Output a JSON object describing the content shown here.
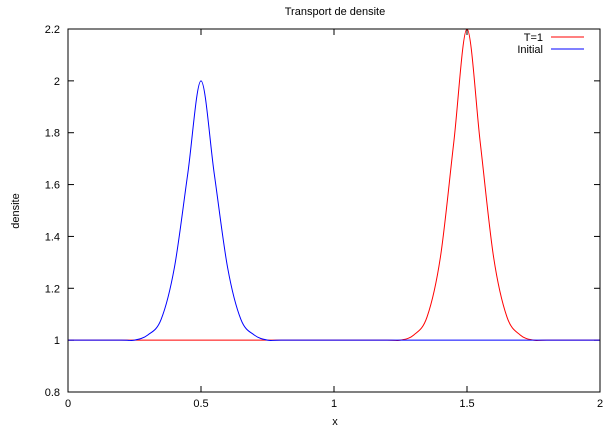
{
  "chart_data": {
    "type": "line",
    "title": "Transport de densite",
    "xlabel": "x",
    "ylabel": "densite",
    "xlim": [
      0,
      2
    ],
    "ylim": [
      0.8,
      2.2
    ],
    "grid": false,
    "legend_placement": "top-right",
    "x_ticks": [
      "0",
      "0.5",
      "1",
      "1.5",
      "2"
    ],
    "y_ticks": [
      "0.8",
      "1",
      "1.2",
      "1.4",
      "1.6",
      "1.8",
      "2",
      "2.2"
    ],
    "series": [
      {
        "name": "T=1",
        "color": "#ff0000",
        "x": [
          0,
          0.2,
          0.4,
          0.6,
          0.8,
          1.0,
          1.2,
          1.25,
          1.3,
          1.35,
          1.4,
          1.45,
          1.5,
          1.55,
          1.6,
          1.65,
          1.7,
          1.75,
          1.8,
          2.0
        ],
        "y": [
          1.0,
          1.0,
          1.0,
          1.0,
          1.0,
          1.0,
          1.0,
          1.0,
          1.02,
          1.09,
          1.32,
          1.76,
          2.2,
          1.76,
          1.32,
          1.09,
          1.02,
          1.0,
          1.0,
          1.0
        ]
      },
      {
        "name": "Initial",
        "color": "#0000ff",
        "x": [
          0,
          0.2,
          0.25,
          0.3,
          0.35,
          0.4,
          0.45,
          0.5,
          0.55,
          0.6,
          0.65,
          0.7,
          0.75,
          0.8,
          1.0,
          1.2,
          1.5,
          1.8,
          2.0
        ],
        "y": [
          1.0,
          1.0,
          1.0,
          1.02,
          1.08,
          1.28,
          1.64,
          2.0,
          1.64,
          1.28,
          1.08,
          1.02,
          1.0,
          1.0,
          1.0,
          1.0,
          1.0,
          1.0,
          1.0
        ]
      }
    ]
  }
}
